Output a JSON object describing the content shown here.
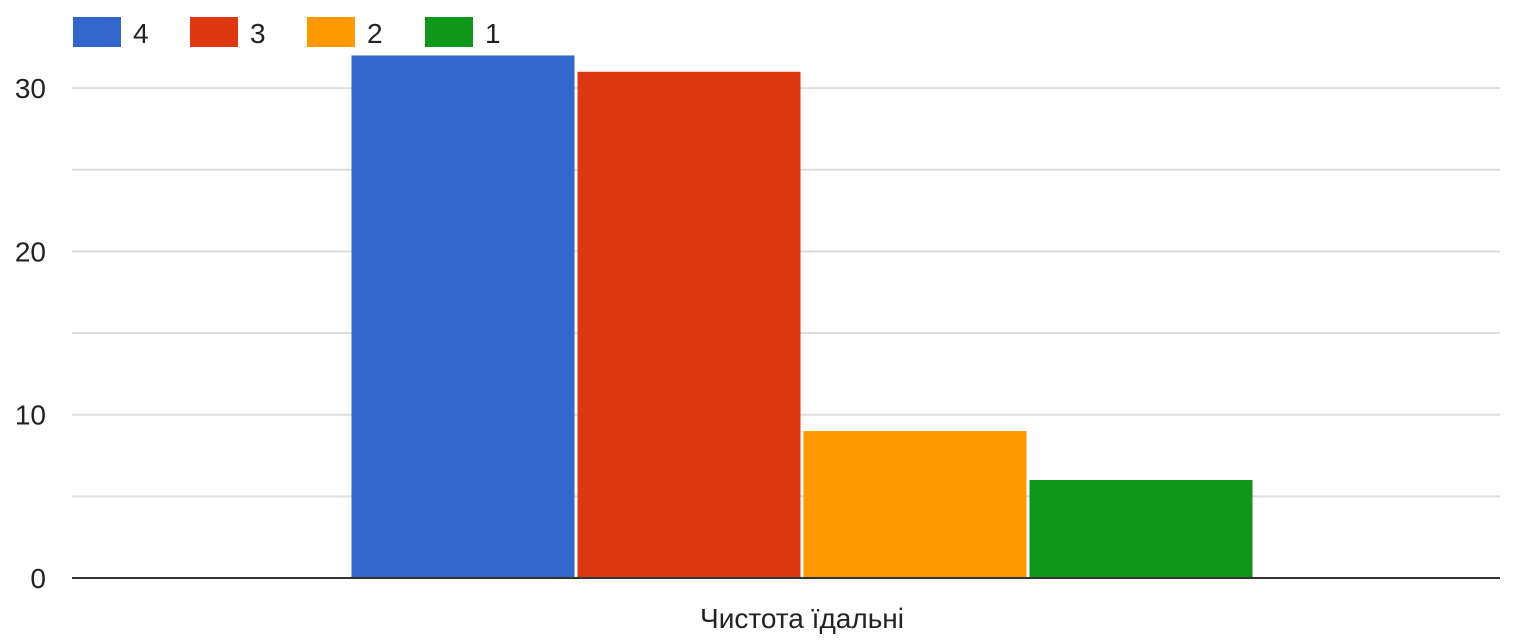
{
  "chart_data": {
    "type": "bar",
    "categories": [
      "Чистота їдальні"
    ],
    "series": [
      {
        "name": "4",
        "values": [
          32
        ],
        "color": "#3366cc"
      },
      {
        "name": "3",
        "values": [
          31
        ],
        "color": "#dc3912"
      },
      {
        "name": "2",
        "values": [
          9
        ],
        "color": "#ff9900"
      },
      {
        "name": "1",
        "values": [
          6
        ],
        "color": "#109618"
      }
    ],
    "title": "",
    "xlabel": "",
    "ylabel": "",
    "ylim": [
      0,
      33
    ],
    "yticks": [
      0,
      10,
      20,
      30
    ],
    "grid": true,
    "legend_position": "top-left"
  }
}
